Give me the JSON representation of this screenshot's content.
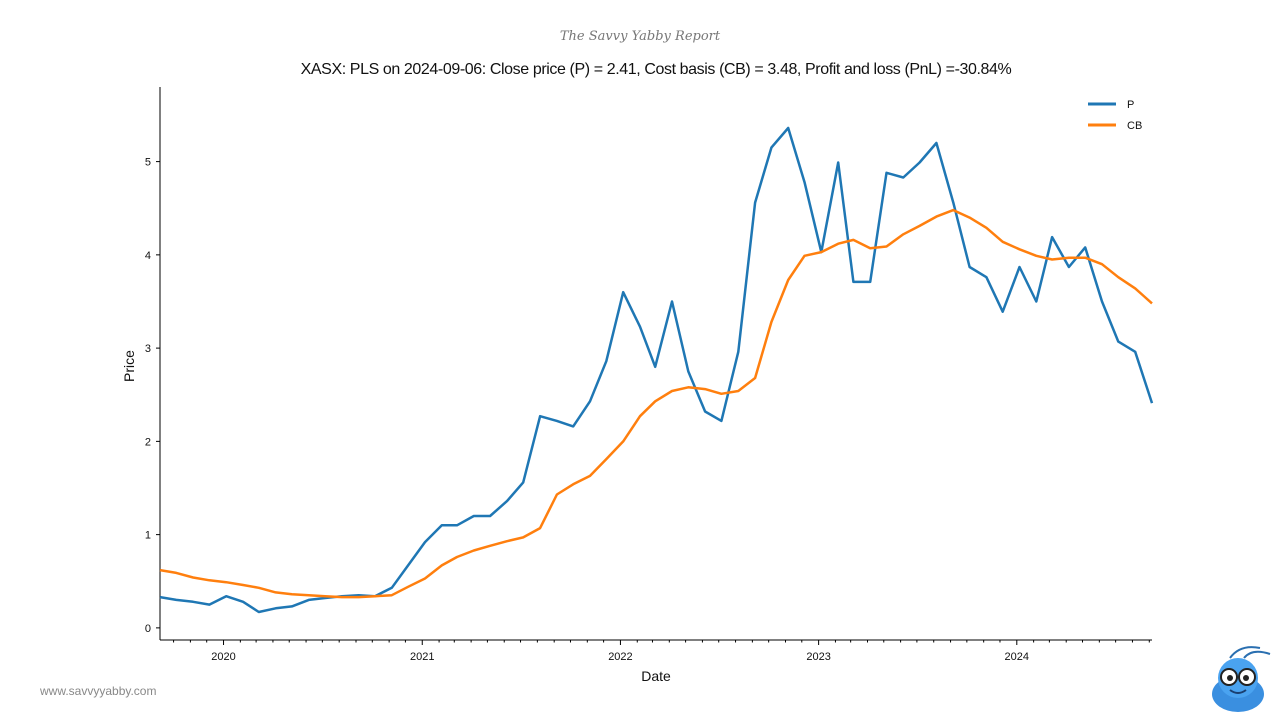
{
  "brand": "The Savvy Yabby Report",
  "website": "www.savvyyabby.com",
  "chart_data": {
    "type": "line",
    "title": "XASX: PLS on 2024-09-06: Close price (P) = 2.41, Cost basis (CB) = 3.48, Profit and loss (PnL) =-30.84%",
    "xlabel": "Date",
    "ylabel": "Price",
    "xlim": [
      "2019-09-06",
      "2024-09-06"
    ],
    "ylim": [
      -0.13,
      5.8
    ],
    "x_ticks": [
      "2020",
      "2021",
      "2022",
      "2023",
      "2024"
    ],
    "y_ticks": [
      0,
      1,
      2,
      3,
      4,
      5
    ],
    "grid": false,
    "legend": "top-right",
    "colors": {
      "P": "#1f77b4",
      "CB": "#ff7f0e"
    },
    "dates": [
      "2019-09-06",
      "2019-10-06",
      "2019-11-06",
      "2019-12-06",
      "2020-01-06",
      "2020-02-06",
      "2020-03-06",
      "2020-04-06",
      "2020-05-06",
      "2020-06-06",
      "2020-07-06",
      "2020-08-06",
      "2020-09-06",
      "2020-10-06",
      "2020-11-06",
      "2020-12-06",
      "2021-01-06",
      "2021-02-06",
      "2021-03-06",
      "2021-04-06",
      "2021-05-06",
      "2021-06-06",
      "2021-07-06",
      "2021-08-06",
      "2021-09-06",
      "2021-10-06",
      "2021-11-06",
      "2021-12-06",
      "2022-01-06",
      "2022-02-06",
      "2022-03-06",
      "2022-04-06",
      "2022-05-06",
      "2022-06-06",
      "2022-07-06",
      "2022-08-06",
      "2022-09-06",
      "2022-10-06",
      "2022-11-06",
      "2022-12-06",
      "2023-01-06",
      "2023-02-06",
      "2023-03-06",
      "2023-04-06",
      "2023-05-06",
      "2023-06-06",
      "2023-07-06",
      "2023-08-06",
      "2023-09-06",
      "2023-10-06",
      "2023-11-06",
      "2023-12-06",
      "2024-01-06",
      "2024-02-06",
      "2024-03-06",
      "2024-04-06",
      "2024-05-06",
      "2024-06-06",
      "2024-07-06",
      "2024-08-06",
      "2024-09-06"
    ],
    "series": [
      {
        "name": "P",
        "values": [
          0.33,
          0.3,
          0.28,
          0.25,
          0.34,
          0.28,
          0.17,
          0.21,
          0.23,
          0.3,
          0.32,
          0.34,
          0.35,
          0.34,
          0.43,
          0.67,
          0.92,
          1.1,
          1.1,
          1.2,
          1.2,
          1.36,
          1.56,
          2.27,
          2.22,
          2.16,
          2.43,
          2.86,
          3.6,
          3.23,
          2.8,
          3.5,
          2.75,
          2.32,
          2.22,
          2.96,
          4.56,
          5.15,
          5.36,
          4.78,
          4.03,
          4.99,
          3.71,
          3.71,
          4.88,
          4.83,
          4.99,
          5.2,
          4.56,
          3.87,
          3.76,
          3.39,
          3.87,
          3.5,
          4.19,
          3.87,
          4.08,
          3.5,
          3.07,
          2.96,
          2.41
        ]
      },
      {
        "name": "CB",
        "values": [
          0.62,
          0.59,
          0.54,
          0.51,
          0.49,
          0.46,
          0.43,
          0.38,
          0.36,
          0.35,
          0.34,
          0.33,
          0.33,
          0.34,
          0.35,
          0.44,
          0.53,
          0.67,
          0.76,
          0.83,
          0.88,
          0.93,
          0.97,
          1.07,
          1.43,
          1.54,
          1.63,
          1.81,
          2.0,
          2.27,
          2.43,
          2.54,
          2.58,
          2.56,
          2.51,
          2.54,
          2.68,
          3.28,
          3.73,
          3.99,
          4.03,
          4.12,
          4.16,
          4.07,
          4.09,
          4.22,
          4.31,
          4.41,
          4.48,
          4.4,
          4.29,
          4.14,
          4.06,
          3.99,
          3.95,
          3.97,
          3.97,
          3.9,
          3.76,
          3.64,
          3.48
        ]
      }
    ]
  }
}
